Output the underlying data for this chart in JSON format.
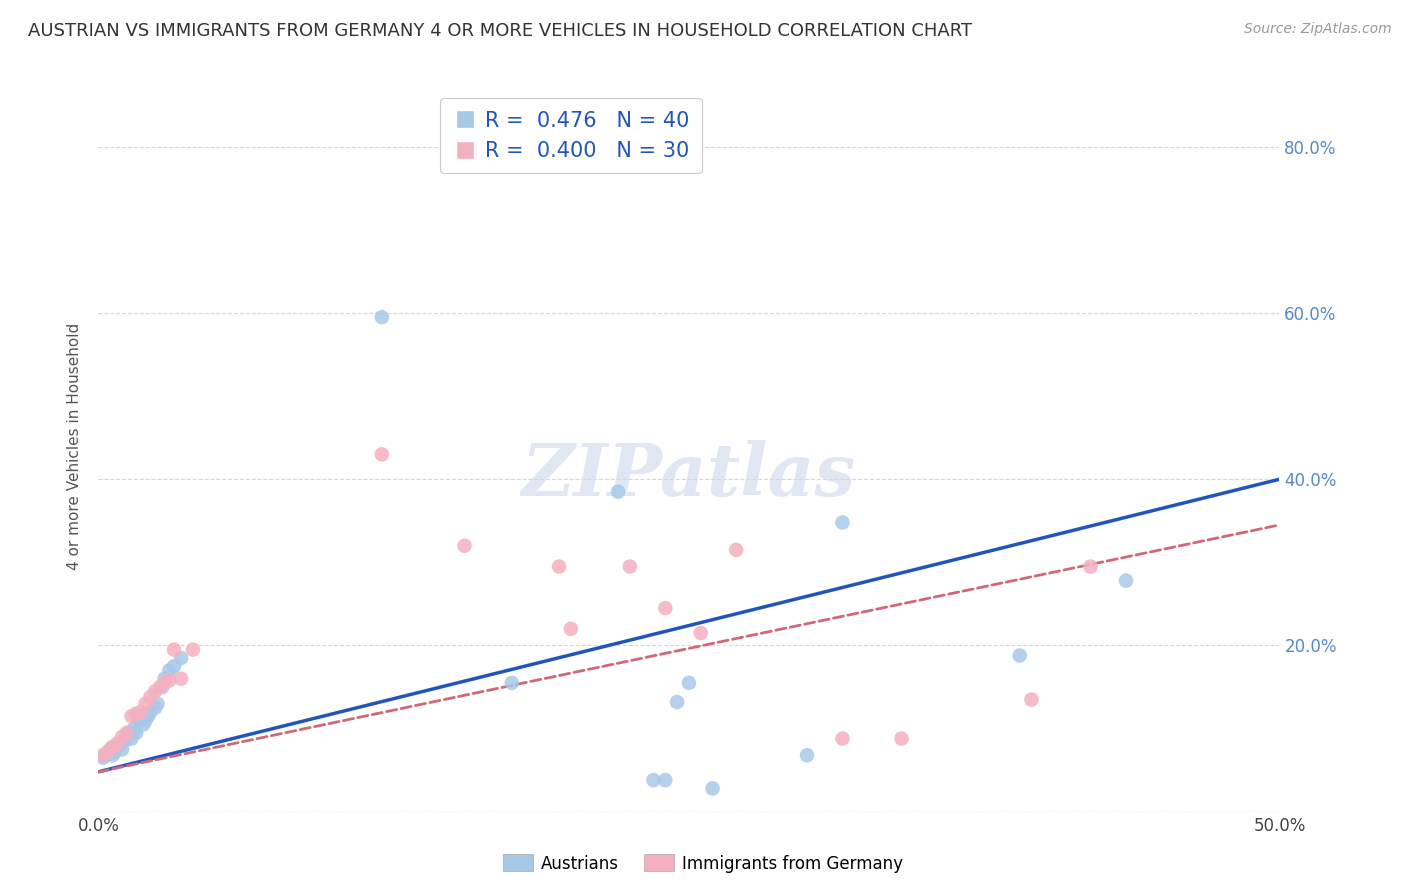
{
  "title": "AUSTRIAN VS IMMIGRANTS FROM GERMANY 4 OR MORE VEHICLES IN HOUSEHOLD CORRELATION CHART",
  "source": "Source: ZipAtlas.com",
  "ylabel": "4 or more Vehicles in Household",
  "xlim": [
    0.0,
    0.5
  ],
  "ylim": [
    0.0,
    0.88
  ],
  "xticks": [
    0.0,
    0.05,
    0.1,
    0.15,
    0.2,
    0.25,
    0.3,
    0.35,
    0.4,
    0.45,
    0.5
  ],
  "yticks": [
    0.0,
    0.2,
    0.4,
    0.6,
    0.8
  ],
  "right_ytick_labels": [
    "",
    "20.0%",
    "40.0%",
    "60.0%",
    "80.0%"
  ],
  "xtick_labels": [
    "0.0%",
    "",
    "",
    "",
    "",
    "",
    "",
    "",
    "",
    "",
    "50.0%"
  ],
  "austrian_color": "#a8c8e8",
  "immigrant_color": "#f4b0c0",
  "austrian_line_color": "#2255bb",
  "immigrant_line_color": "#d06878",
  "background_color": "#ffffff",
  "watermark_text": "ZIPatlas",
  "austrian_r": 0.476,
  "austrian_n": 40,
  "immigrant_r": 0.4,
  "immigrant_n": 30,
  "austrians_x": [
    0.002,
    0.003,
    0.004,
    0.005,
    0.006,
    0.007,
    0.008,
    0.009,
    0.01,
    0.011,
    0.012,
    0.013,
    0.014,
    0.015,
    0.016,
    0.017,
    0.018,
    0.019,
    0.02,
    0.021,
    0.022,
    0.024,
    0.025,
    0.027,
    0.028,
    0.03,
    0.032,
    0.035,
    0.12,
    0.175,
    0.22,
    0.235,
    0.24,
    0.245,
    0.25,
    0.26,
    0.3,
    0.315,
    0.39,
    0.435
  ],
  "austrians_y": [
    0.065,
    0.068,
    0.072,
    0.075,
    0.068,
    0.072,
    0.078,
    0.08,
    0.075,
    0.085,
    0.09,
    0.095,
    0.088,
    0.1,
    0.095,
    0.11,
    0.115,
    0.105,
    0.11,
    0.115,
    0.12,
    0.125,
    0.13,
    0.15,
    0.16,
    0.17,
    0.175,
    0.185,
    0.595,
    0.155,
    0.385,
    0.038,
    0.038,
    0.132,
    0.155,
    0.028,
    0.068,
    0.348,
    0.188,
    0.278
  ],
  "immigrants_x": [
    0.002,
    0.004,
    0.006,
    0.008,
    0.01,
    0.012,
    0.014,
    0.016,
    0.018,
    0.02,
    0.022,
    0.024,
    0.026,
    0.028,
    0.03,
    0.032,
    0.035,
    0.04,
    0.12,
    0.155,
    0.195,
    0.2,
    0.225,
    0.24,
    0.255,
    0.27,
    0.315,
    0.34,
    0.395,
    0.42
  ],
  "immigrants_y": [
    0.068,
    0.072,
    0.078,
    0.082,
    0.09,
    0.095,
    0.115,
    0.118,
    0.12,
    0.13,
    0.138,
    0.145,
    0.15,
    0.155,
    0.158,
    0.195,
    0.16,
    0.195,
    0.43,
    0.32,
    0.295,
    0.22,
    0.295,
    0.245,
    0.215,
    0.315,
    0.088,
    0.088,
    0.135,
    0.295
  ]
}
